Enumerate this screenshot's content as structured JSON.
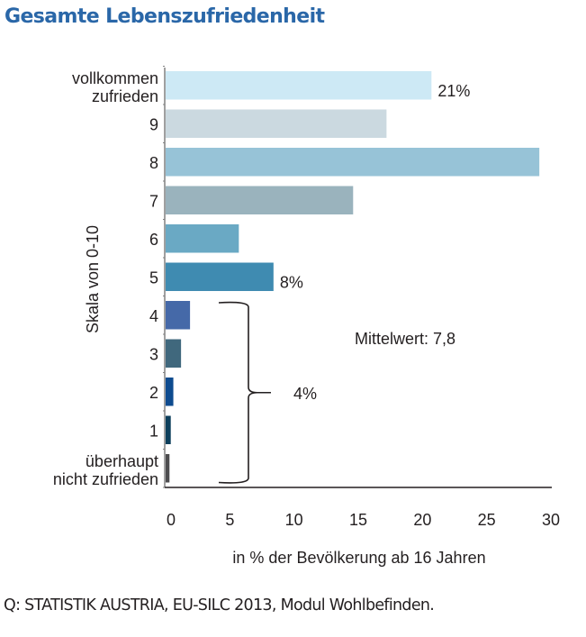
{
  "title": "Gesamte Lebenszufriedenheit",
  "source": "Q: STATISTIK AUSTRIA, EU-SILC 2013, Modul Wohlbefinden.",
  "chart_data": {
    "type": "bar",
    "orientation": "horizontal",
    "title": "Gesamte Lebenszufriedenheit",
    "xlabel": "in % der Bevölkerung ab 16 Jahren",
    "ylabel": "Skala von 0-10",
    "xlim": [
      0,
      30
    ],
    "xticks": [
      "0",
      "5",
      "10",
      "15",
      "20",
      "25",
      "30"
    ],
    "grid": false,
    "categories": [
      [
        "vollkommen",
        "zufrieden"
      ],
      [
        "9"
      ],
      [
        "8"
      ],
      [
        "7"
      ],
      [
        "6"
      ],
      [
        "5"
      ],
      [
        "4"
      ],
      [
        "3"
      ],
      [
        "2"
      ],
      [
        "1"
      ],
      [
        "überhaupt",
        "nicht zufrieden"
      ]
    ],
    "values": [
      20.7,
      17.2,
      29.1,
      14.6,
      5.7,
      8.4,
      1.9,
      1.2,
      0.6,
      0.4,
      0.3
    ],
    "colors": [
      "#cde9f5",
      "#cbd9e0",
      "#97c3d7",
      "#9ab3bd",
      "#6aa9c4",
      "#3f8bb1",
      "#4569a8",
      "#40687d",
      "#0e4b8f",
      "#0d3f5c",
      "#4d4d4f"
    ],
    "data_labels": [
      {
        "category_index": 0,
        "text": "21%"
      },
      {
        "category_index": 5,
        "text": "8%"
      }
    ],
    "annotations": [
      {
        "text": "Mittelwert: 7,8"
      },
      {
        "text": "4%",
        "bracket_from_index": 6,
        "bracket_to_index": 10
      }
    ]
  }
}
